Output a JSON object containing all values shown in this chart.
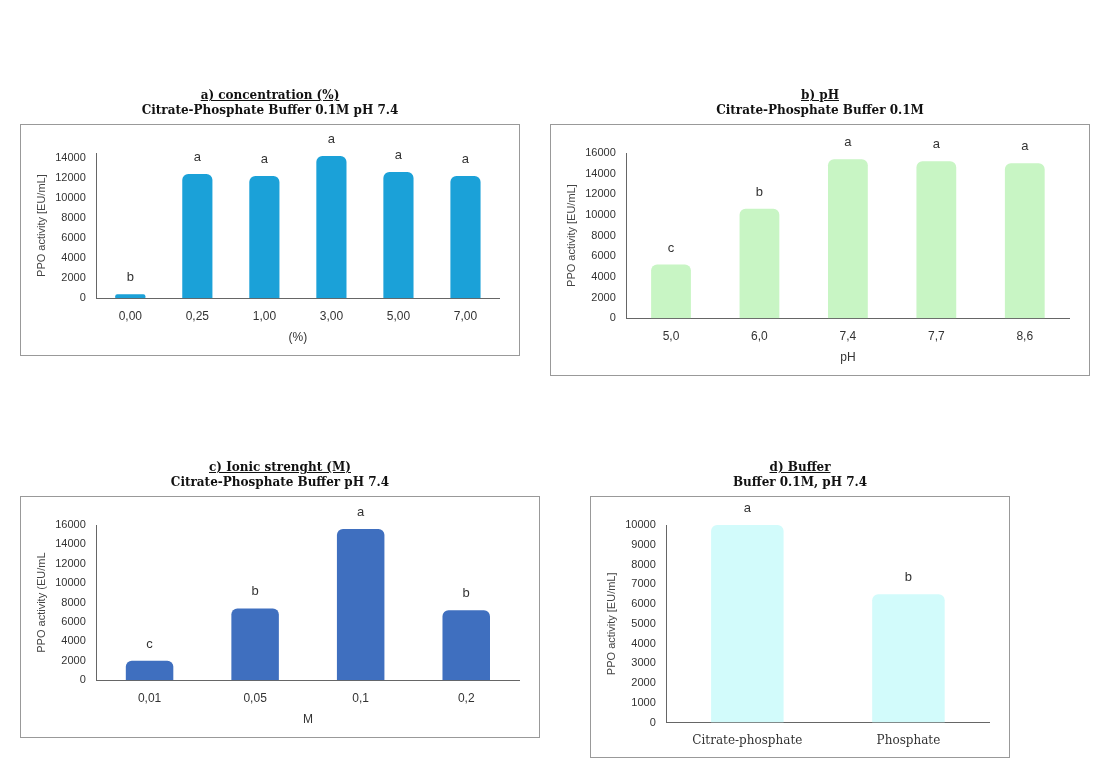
{
  "chart_data": [
    {
      "type": "bar",
      "title": "a) concentration (%)",
      "subtitle": "Citrate-Phosphate Buffer 0.1M pH 7.4",
      "xlabel": "(%)",
      "ylabel": "PPO activity [EU/mL]",
      "categories": [
        "0,00",
        "0,25",
        "1,00",
        "3,00",
        "5,00",
        "7,00"
      ],
      "values": [
        400,
        12400,
        12200,
        14200,
        12600,
        12200
      ],
      "value_labels": [
        "b",
        "a",
        "a",
        "a",
        "a",
        "a"
      ],
      "color": "#1ba1d8",
      "ylim": [
        0,
        14500
      ],
      "yticks": [
        0,
        2000,
        4000,
        6000,
        8000,
        10000,
        12000,
        14000
      ],
      "grid": false,
      "legend": false
    },
    {
      "type": "bar",
      "title": "b) pH",
      "subtitle": "Citrate-Phosphate Buffer 0.1M",
      "xlabel": "pH",
      "ylabel": "PPO activity [EU/mL]",
      "categories": [
        "5,0",
        "6,0",
        "7,4",
        "7,7",
        "8,6"
      ],
      "values": [
        5200,
        10600,
        15400,
        15200,
        15000
      ],
      "value_labels": [
        "c",
        "b",
        "a",
        "a",
        "a"
      ],
      "color": "#c8f5c4",
      "ylim": [
        0,
        16000
      ],
      "yticks": [
        0,
        2000,
        4000,
        6000,
        8000,
        10000,
        12000,
        14000,
        16000
      ],
      "grid": false,
      "legend": false
    },
    {
      "type": "bar",
      "title": "c) Ionic strenght (M)",
      "subtitle": "Citrate-Phosphate Buffer pH 7.4",
      "xlabel": "M",
      "ylabel": "PPO activity (EU/mL",
      "categories": [
        "0,01",
        "0,05",
        "0,1",
        "0,2"
      ],
      "values": [
        2000,
        7400,
        15600,
        7200
      ],
      "value_labels": [
        "c",
        "b",
        "a",
        "b"
      ],
      "color": "#3f6fbf",
      "ylim": [
        0,
        16000
      ],
      "yticks": [
        0,
        2000,
        4000,
        6000,
        8000,
        10000,
        12000,
        14000,
        16000
      ],
      "grid": false,
      "legend": false
    },
    {
      "type": "bar",
      "title": "d) Buffer",
      "subtitle": "Buffer 0.1M, pH 7.4",
      "ylabel": "PPO activity [EU/mL]",
      "categories": [
        "Citrate-phosphate",
        "Phosphate"
      ],
      "values": [
        10000,
        6500
      ],
      "value_labels": [
        "a",
        "b"
      ],
      "color": "#d2fbfb",
      "ylim": [
        0,
        10000
      ],
      "yticks": [
        0,
        1000,
        2000,
        3000,
        4000,
        5000,
        6000,
        7000,
        8000,
        9000,
        10000
      ],
      "grid": false,
      "legend": false
    }
  ]
}
